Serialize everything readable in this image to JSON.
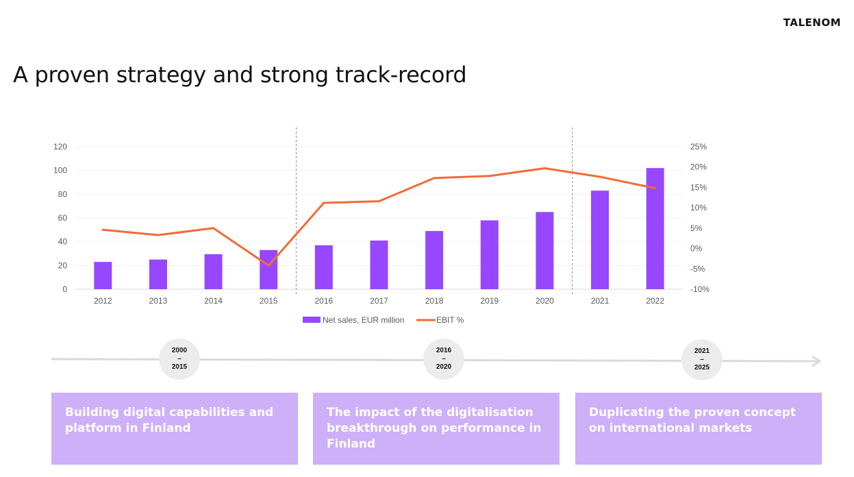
{
  "logo": "TALENOM",
  "title": "A proven strategy and strong track-record",
  "chart_data": {
    "type": "bar",
    "categories": [
      "2012",
      "2013",
      "2014",
      "2015",
      "2016",
      "2017",
      "2018",
      "2019",
      "2020",
      "2021",
      "2022"
    ],
    "series": [
      {
        "name": "Net sales, EUR million",
        "type": "bar",
        "axis": "left",
        "color": "#9747ff",
        "values": [
          23,
          25,
          29.5,
          33,
          37,
          41,
          49,
          58,
          65,
          83,
          102
        ]
      },
      {
        "name": "EBIT %",
        "type": "line",
        "axis": "right",
        "color": "#f26a36",
        "values": [
          4.6,
          3.3,
          5.0,
          -4.2,
          11.2,
          11.6,
          17.3,
          17.8,
          19.7,
          17.6,
          14.8
        ]
      }
    ],
    "y_left": {
      "range": [
        0,
        120
      ],
      "ticks": [
        "0",
        "20",
        "40",
        "60",
        "80",
        "100",
        "120"
      ]
    },
    "y_right": {
      "range": [
        -10,
        25
      ],
      "ticks": [
        "-10%",
        "-5%",
        "0%",
        "5%",
        "10%",
        "15%",
        "20%",
        "25%"
      ]
    },
    "dividers_after": [
      "2015",
      "2020"
    ],
    "legend_position": "bottom"
  },
  "timeline": [
    {
      "start": "2000",
      "dash": "–",
      "end": "2015",
      "text": "Building digital capabilities and platform in Finland"
    },
    {
      "start": "2016",
      "dash": "–",
      "end": "2020",
      "text": "The impact of the digitalisation breakthrough on performance in Finland"
    },
    {
      "start": "2021",
      "dash": "–",
      "end": "2025",
      "text": "Duplicating the proven concept on international markets"
    }
  ],
  "colors": {
    "bar": "#9747ff",
    "line": "#f26a36",
    "box": "#cdb0f7",
    "timeline": "#d9d9d9"
  }
}
